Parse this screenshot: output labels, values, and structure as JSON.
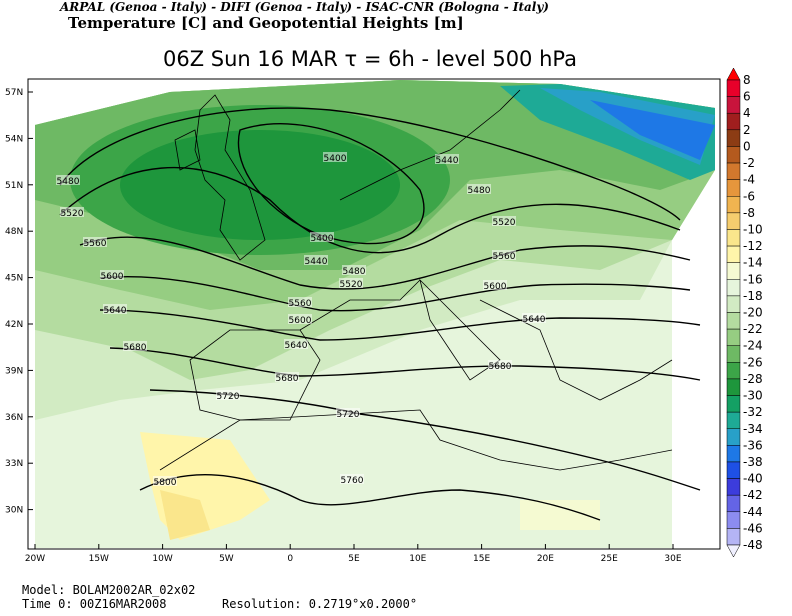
{
  "header": {
    "credits": "ARPAL (Genoa - Italy)  -  DIFI (Genoa - Italy)  -  ISAC-CNR (Bologna - Italy)",
    "product": "Temperature [C] and Geopotential Heights [m]"
  },
  "title": "06Z Sun 16 MAR   τ = 6h   -   level 500 hPa",
  "map": {
    "lat_labels": [
      "57N",
      "54N",
      "51N",
      "48N",
      "45N",
      "42N",
      "39N",
      "36N",
      "33N",
      "30N"
    ],
    "lon_labels": [
      "20W",
      "15W",
      "10W",
      "5W",
      "0",
      "5E",
      "10E",
      "15E",
      "20E",
      "25E",
      "30E"
    ],
    "contour_labels": [
      5400,
      5440,
      5480,
      5480,
      5520,
      5520,
      5400,
      5560,
      5440,
      5480,
      5520,
      5560,
      5600,
      5600,
      5560,
      5640,
      5600,
      5640,
      5680,
      5640,
      5680,
      5680,
      5720,
      5720,
      5760,
      5800
    ]
  },
  "colorbar": {
    "labels": [
      8,
      6,
      4,
      2,
      0,
      -2,
      -4,
      -6,
      -8,
      -10,
      -12,
      -14,
      -16,
      -18,
      -20,
      -22,
      -24,
      -26,
      -28,
      -30,
      -32,
      -34,
      -36,
      -38,
      -40,
      -42,
      -44,
      -46,
      -48
    ],
    "colors": [
      "#ff0000",
      "#e8002a",
      "#c8143c",
      "#a01e1e",
      "#8c3c14",
      "#b45a1e",
      "#d2782d",
      "#e6963c",
      "#f0b450",
      "#f5cd6e",
      "#fae68c",
      "#fff5aa",
      "#f5fad2",
      "#e6f5dc",
      "#d2ebc3",
      "#b4dca0",
      "#96cd82",
      "#6eb964",
      "#3ca548",
      "#1e963c",
      "#14a064",
      "#1eaa96",
      "#28a0c8",
      "#1e78e6",
      "#1e50e6",
      "#3c3cdc",
      "#6464e6",
      "#8c8cf0",
      "#b4b4f5",
      "#dcdcfa",
      "#f0f0ff"
    ]
  },
  "footer": {
    "model": "Model:  BOLAM2002AR_02x02",
    "time": "Time 0:  00Z16MAR2008",
    "resolution": "Resolution:  0.2719°x0.2000°"
  }
}
